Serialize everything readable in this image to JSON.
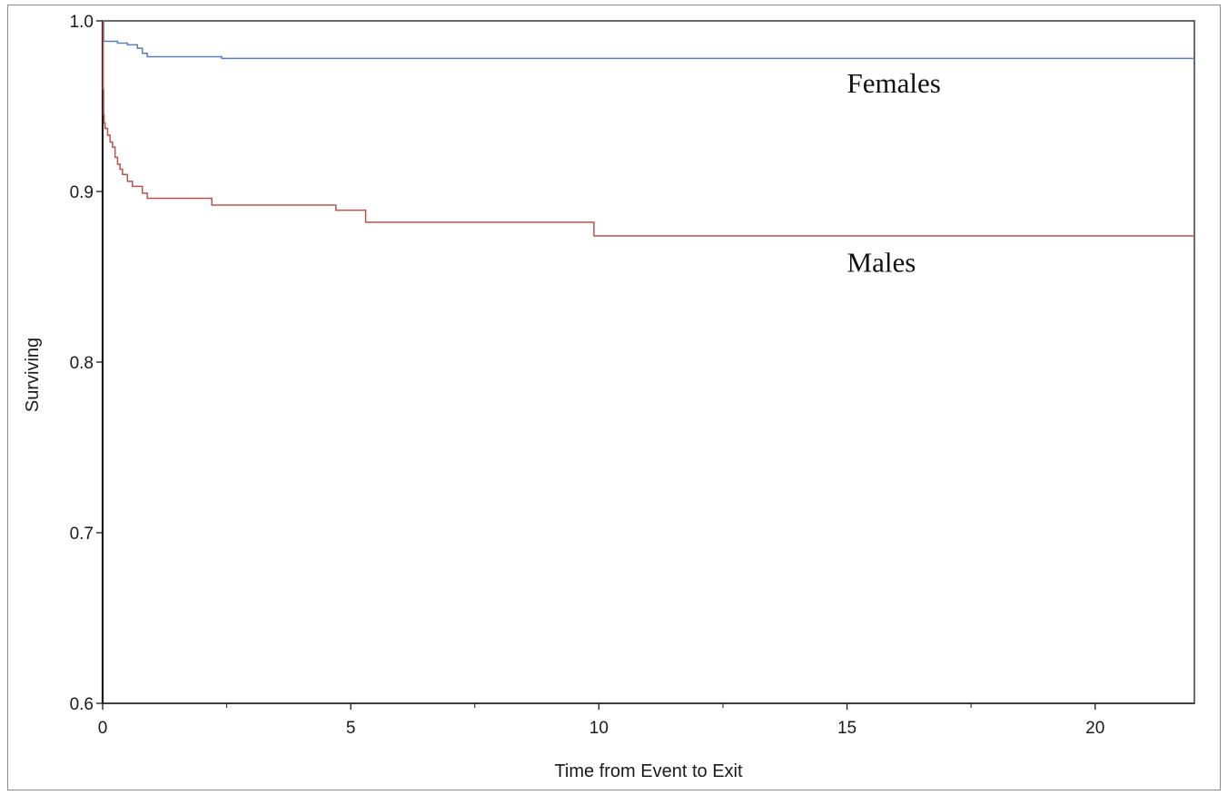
{
  "chart_data": {
    "type": "line",
    "title": "",
    "xlabel": "Time from Event to Exit",
    "ylabel": "Surviving",
    "xlim": [
      0,
      22
    ],
    "ylim": [
      0.6,
      1.0
    ],
    "xticks": [
      0,
      5,
      10,
      15,
      20
    ],
    "xtick_labels": [
      "0",
      "5",
      "10",
      "15",
      "20"
    ],
    "xminor_ticks": [
      2.5,
      7.5,
      12.5,
      17.5
    ],
    "yticks": [
      0.6,
      0.7,
      0.8,
      0.9,
      1.0
    ],
    "ytick_labels": [
      "0.6",
      "0.7",
      "0.8",
      "0.9",
      "1.0"
    ],
    "grid": false,
    "step": true,
    "series": [
      {
        "name": "Females",
        "color": "#5b7fb3",
        "x": [
          0,
          0.02,
          0.3,
          0.5,
          0.7,
          0.8,
          0.9,
          2.0,
          2.4,
          22
        ],
        "y": [
          1.0,
          0.988,
          0.987,
          0.986,
          0.984,
          0.981,
          0.979,
          0.979,
          0.978,
          0.978
        ]
      },
      {
        "name": "Males",
        "color": "#b85450",
        "x": [
          0,
          0.01,
          0.02,
          0.03,
          0.05,
          0.1,
          0.15,
          0.2,
          0.25,
          0.3,
          0.35,
          0.4,
          0.5,
          0.6,
          0.8,
          0.9,
          2.2,
          4.7,
          5.3,
          9.9,
          22
        ],
        "y": [
          1.0,
          0.96,
          0.945,
          0.94,
          0.937,
          0.933,
          0.929,
          0.926,
          0.92,
          0.916,
          0.913,
          0.91,
          0.906,
          0.903,
          0.899,
          0.896,
          0.892,
          0.889,
          0.882,
          0.874,
          0.874
        ]
      }
    ],
    "annotations": [
      {
        "text": "Females",
        "x": 15,
        "y": 0.958
      },
      {
        "text": "Males",
        "x": 15,
        "y": 0.853
      }
    ]
  }
}
